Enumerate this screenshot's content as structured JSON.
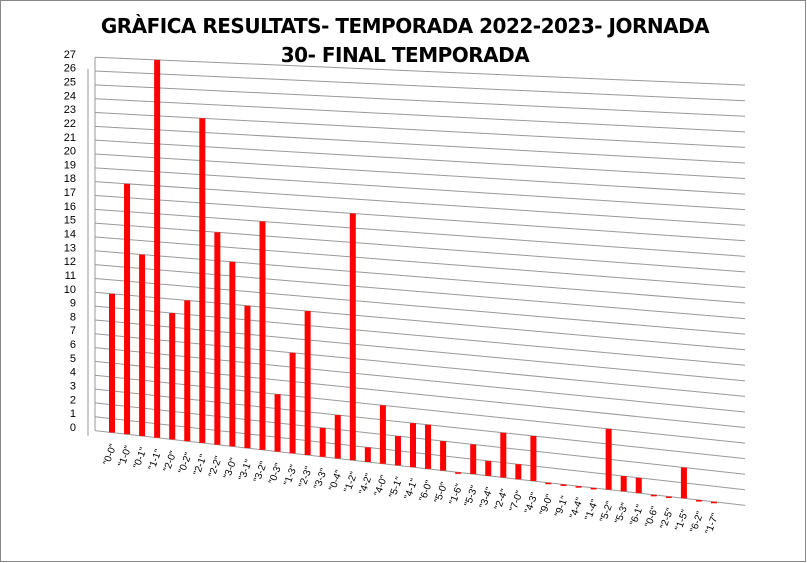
{
  "chart_data": {
    "type": "bar3d",
    "title": "GRÀFICA RESULTATS- TEMPORADA 2022-2023- JORNADA 30- FINAL TEMPORADA",
    "categories": [
      "\"0-0\"",
      "\"1-0\"",
      "\"0-1\"",
      "\"1-1\"",
      "\"2-0\"",
      "\"0-2\"",
      "\"2-1\"",
      "\"2-2\"",
      "\"3-0\"",
      "\"3-1\"",
      "\"3-2\"",
      "\"0-3\"",
      "\"1-3\"",
      "\"2-3\"",
      "\"3-3\"",
      "\"0-4\"",
      "\"1-2\"",
      "\"4-2\"",
      "\"4-0\"",
      "\"5-1\"",
      "\"4-1\"",
      "\"6-0\"",
      "\"5-0\"",
      "\"1-6\"",
      "\"5-3\"",
      "\"3-4\"",
      "\"2-4\"",
      "\"7-0\"",
      "\"4-3\"",
      "\"9-0\"",
      "\"9-1\"",
      "\"4-4\"",
      "\"1-4\"",
      "\"5-2\"",
      "\"5-3\"",
      "\"6-1\"",
      "\"0-6\"",
      "\"2-5\"",
      "\"1-5\"",
      "\"6-2\"",
      "\"1-7\""
    ],
    "values": [
      10,
      18,
      13,
      27,
      9,
      10,
      23,
      15,
      13,
      10,
      16,
      4,
      7,
      10,
      2,
      3,
      17,
      1,
      4,
      2,
      3,
      3,
      2,
      0,
      2,
      1,
      3,
      1,
      3,
      0,
      0,
      0,
      0,
      4,
      1,
      1,
      0,
      0,
      2,
      0,
      0
    ],
    "color": "#ff0000",
    "ylim": [
      0,
      27
    ],
    "yticks": [
      0,
      1,
      2,
      3,
      4,
      5,
      6,
      7,
      8,
      9,
      10,
      11,
      12,
      13,
      14,
      15,
      16,
      17,
      18,
      19,
      20,
      21,
      22,
      23,
      24,
      25,
      26,
      27
    ],
    "grid": true
  }
}
